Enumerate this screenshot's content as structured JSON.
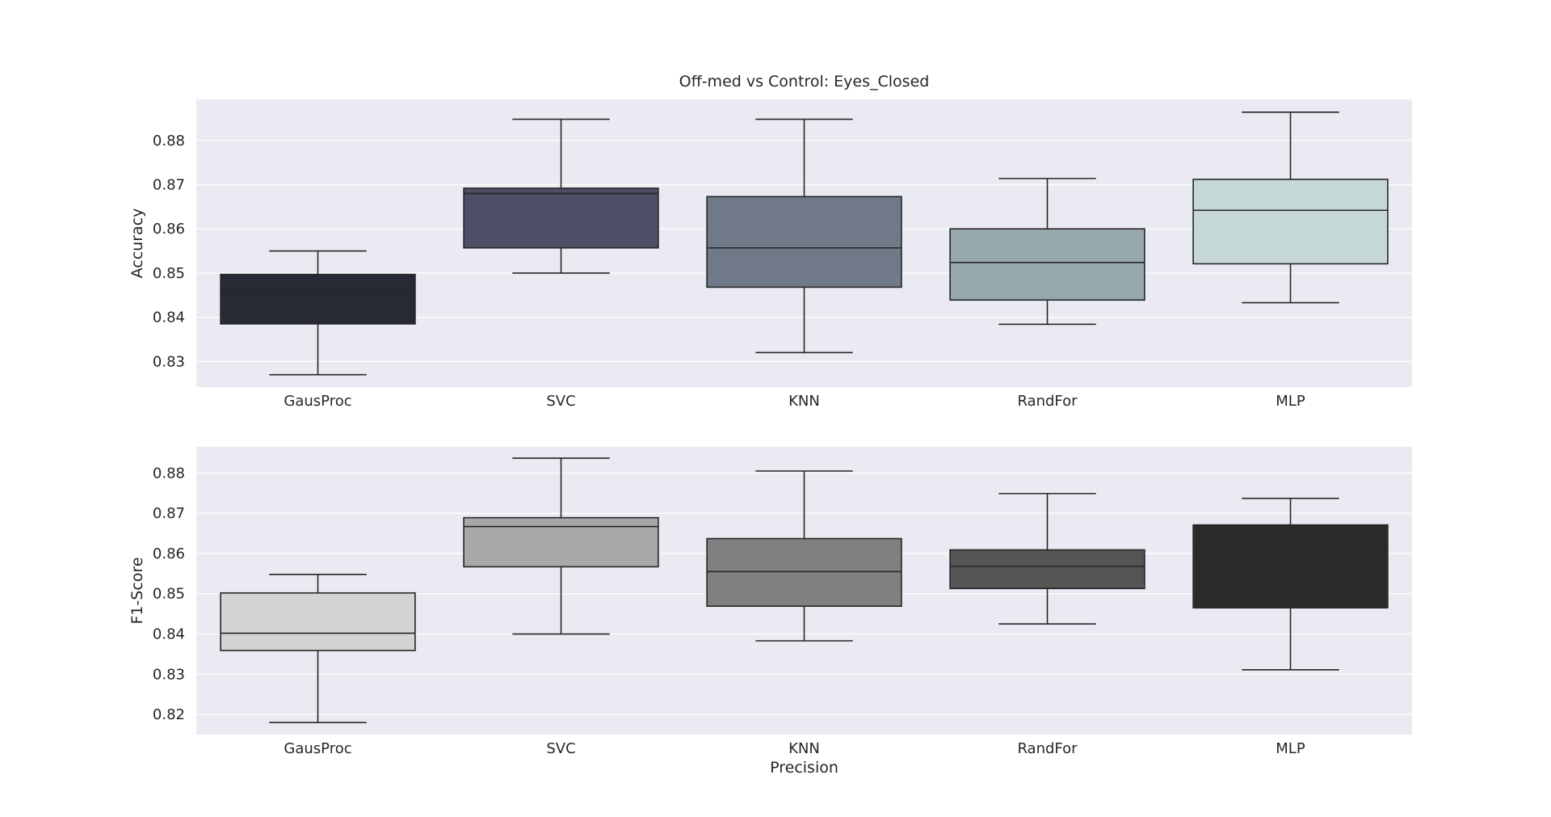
{
  "chart_data": [
    {
      "type": "box",
      "title": "Off-med vs Control: Eyes_Closed",
      "xlabel": "",
      "ylabel": "Accuracy",
      "ylim": [
        0.8242,
        0.8893
      ],
      "yticks": [
        0.83,
        0.84,
        0.85,
        0.86,
        0.87,
        0.88
      ],
      "grid": true,
      "background": "#eaeaf2",
      "categories": [
        "GausProc",
        "SVC",
        "KNN",
        "RandFor",
        "MLP"
      ],
      "boxes": [
        {
          "category": "GausProc",
          "whisker_low": 0.827,
          "q1": 0.8385,
          "median": 0.846,
          "q3": 0.8497,
          "whisker_high": 0.855,
          "color": "#272935"
        },
        {
          "category": "SVC",
          "whisker_low": 0.85,
          "q1": 0.8557,
          "median": 0.868,
          "q3": 0.8692,
          "whisker_high": 0.8848,
          "color": "#4f4e67"
        },
        {
          "category": "KNN",
          "whisker_low": 0.832,
          "q1": 0.8468,
          "median": 0.8557,
          "q3": 0.8673,
          "whisker_high": 0.8848,
          "color": "#707987"
        },
        {
          "category": "RandFor",
          "whisker_low": 0.8384,
          "q1": 0.8439,
          "median": 0.8524,
          "q3": 0.86,
          "whisker_high": 0.8714,
          "color": "#96a7ad"
        },
        {
          "category": "MLP",
          "whisker_low": 0.8433,
          "q1": 0.8521,
          "median": 0.8642,
          "q3": 0.8712,
          "whisker_high": 0.8864,
          "color": "#c5d7d7"
        }
      ]
    },
    {
      "type": "box",
      "title": "",
      "xlabel": "Precision",
      "ylabel": "F1-Score",
      "ylim": [
        0.815,
        0.8865
      ],
      "yticks": [
        0.82,
        0.83,
        0.84,
        0.85,
        0.86,
        0.87,
        0.88
      ],
      "grid": true,
      "background": "#eaeaf2",
      "categories": [
        "GausProc",
        "SVC",
        "KNN",
        "RandFor",
        "MLP"
      ],
      "boxes": [
        {
          "category": "GausProc",
          "whisker_low": 0.818,
          "q1": 0.8359,
          "median": 0.8402,
          "q3": 0.8502,
          "whisker_high": 0.8548,
          "color": "#d4d4d4"
        },
        {
          "category": "SVC",
          "whisker_low": 0.84,
          "q1": 0.8567,
          "median": 0.8667,
          "q3": 0.8689,
          "whisker_high": 0.8837,
          "color": "#a8a8a8"
        },
        {
          "category": "KNN",
          "whisker_low": 0.8383,
          "q1": 0.8469,
          "median": 0.8555,
          "q3": 0.8637,
          "whisker_high": 0.8805,
          "color": "#808080"
        },
        {
          "category": "RandFor",
          "whisker_low": 0.8425,
          "q1": 0.8513,
          "median": 0.8568,
          "q3": 0.8609,
          "whisker_high": 0.8749,
          "color": "#555555"
        },
        {
          "category": "MLP",
          "whisker_low": 0.8311,
          "q1": 0.8465,
          "median": 0.8611,
          "q3": 0.8671,
          "whisker_high": 0.8737,
          "color": "#2b2b2b"
        }
      ]
    }
  ]
}
